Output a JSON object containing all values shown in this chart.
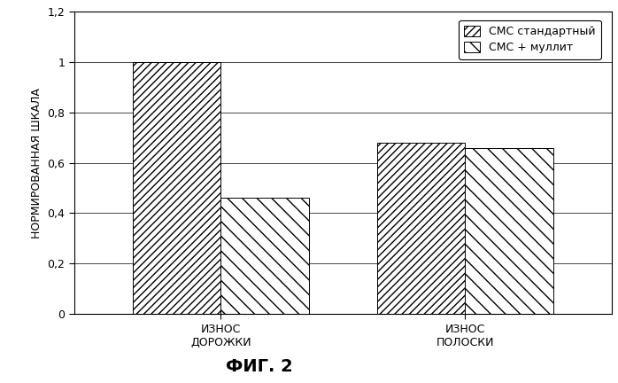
{
  "categories": [
    "ИЗНОС\nДОРОЖКИ",
    "ИЗНОС\nПОЛОСКИ"
  ],
  "series": [
    {
      "label": "CMC  стандартный",
      "values": [
        1.0,
        0.68
      ],
      "hatch": "////"
    },
    {
      "label": "CMC + муллит",
      "values": [
        0.46,
        0.66
      ],
      "hatch": "\\\\"
    }
  ],
  "ylabel": "НОРМИРОВАННАЯ ШКАЛА",
  "fig_label": "ФИГ. 2",
  "ylim": [
    0,
    1.2
  ],
  "yticks": [
    0,
    0.2,
    0.4,
    0.6,
    0.8,
    1.0,
    1.2
  ],
  "ytick_labels": [
    "0",
    "0,2",
    "0,4",
    "0,6",
    "0,8",
    "1",
    "1,2"
  ],
  "bar_width": 0.18,
  "group_centers": [
    0.25,
    0.75
  ],
  "bar_edge_color": "#000000",
  "bar_face_color": "#ffffff",
  "background_color": "#ffffff",
  "fig_label_fontsize": 14,
  "ylabel_fontsize": 9,
  "tick_fontsize": 9,
  "legend_fontsize": 9,
  "legend_label1": "CMC стандартный",
  "legend_label2": "CMC + муллит"
}
